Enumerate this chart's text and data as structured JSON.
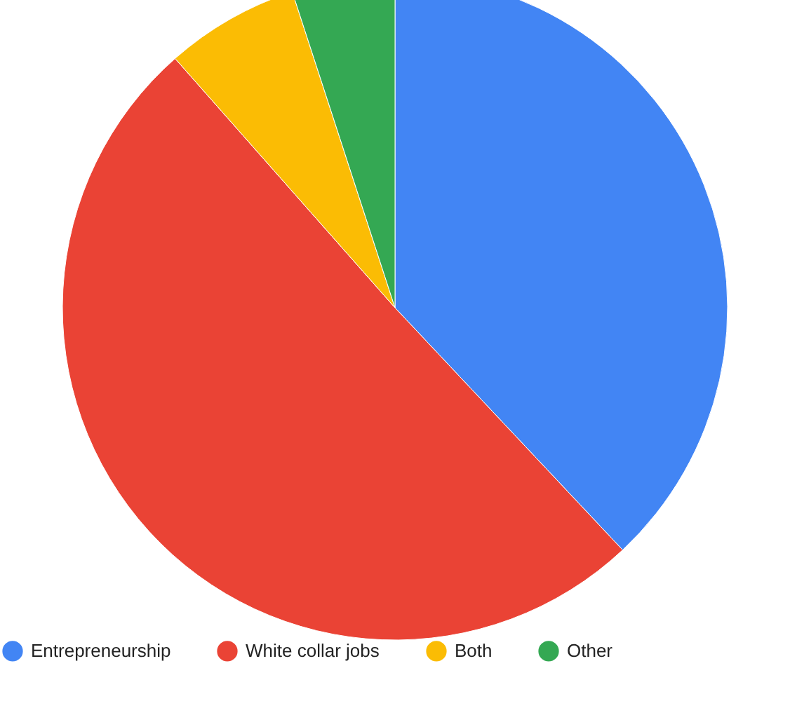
{
  "chart_data": {
    "type": "pie",
    "categories": [
      "Entrepreneurship",
      "White collar jobs",
      "Both",
      "Other"
    ],
    "values": [
      38,
      50.5,
      6.5,
      5
    ],
    "colors": [
      "#4285f4",
      "#ea4335",
      "#fbbc04",
      "#34a853"
    ],
    "legend": "bottom"
  }
}
